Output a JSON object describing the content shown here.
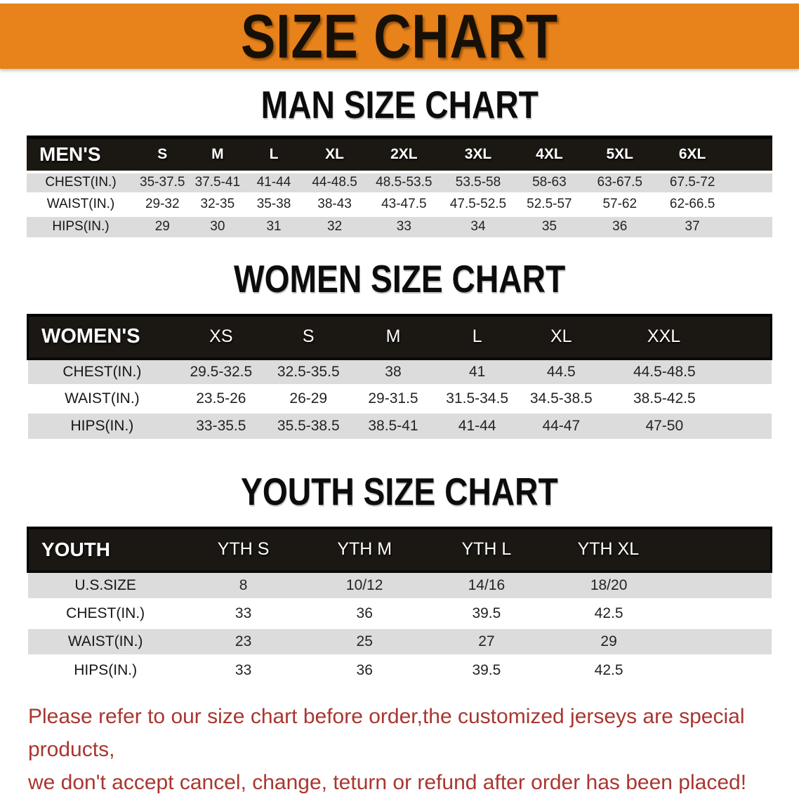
{
  "colors": {
    "banner_orange": "#e8821b",
    "table_header_black": "#1b1713",
    "row_gray": "#dcdcdc",
    "disclaimer_red": "#a93630"
  },
  "banner": {
    "title": "SIZE CHART"
  },
  "sections": {
    "men": {
      "heading": "MAN SIZE CHART",
      "table": {
        "label": "MEN'S",
        "columns": [
          "S",
          "M",
          "L",
          "XL",
          "2XL",
          "3XL",
          "4XL",
          "5XL",
          "6XL"
        ],
        "rows": [
          {
            "label": "CHEST(IN.)",
            "values": [
              "35-37.5",
              "37.5-41",
              "41-44",
              "44-48.5",
              "48.5-53.5",
              "53.5-58",
              "58-63",
              "63-67.5",
              "67.5-72"
            ]
          },
          {
            "label": "WAIST(IN.)",
            "values": [
              "29-32",
              "32-35",
              "35-38",
              "38-43",
              "43-47.5",
              "47.5-52.5",
              "52.5-57",
              "57-62",
              "62-66.5"
            ]
          },
          {
            "label": "HIPS(IN.)",
            "values": [
              "29",
              "30",
              "31",
              "32",
              "33",
              "34",
              "35",
              "36",
              "37"
            ]
          }
        ]
      }
    },
    "women": {
      "heading": "WOMEN SIZE CHART",
      "table": {
        "label": "WOMEN'S",
        "columns": [
          "XS",
          "S",
          "M",
          "L",
          "XL",
          "XXL"
        ],
        "rows": [
          {
            "label": "CHEST(IN.)",
            "values": [
              "29.5-32.5",
              "32.5-35.5",
              "38",
              "41",
              "44.5",
              "44.5-48.5"
            ]
          },
          {
            "label": "WAIST(IN.)",
            "values": [
              "23.5-26",
              "26-29",
              "29-31.5",
              "31.5-34.5",
              "34.5-38.5",
              "38.5-42.5"
            ]
          },
          {
            "label": "HIPS(IN.)",
            "values": [
              "33-35.5",
              "35.5-38.5",
              "38.5-41",
              "41-44",
              "44-47",
              "47-50"
            ]
          }
        ]
      }
    },
    "youth": {
      "heading": "YOUTH SIZE CHART",
      "table": {
        "label": "YOUTH",
        "columns": [
          "YTH S",
          "YTH M",
          "YTH L",
          "YTH XL"
        ],
        "rows": [
          {
            "label": "U.S.SIZE",
            "values": [
              "8",
              "10/12",
              "14/16",
              "18/20"
            ]
          },
          {
            "label": "CHEST(IN.)",
            "values": [
              "33",
              "36",
              "39.5",
              "42.5"
            ]
          },
          {
            "label": "WAIST(IN.)",
            "values": [
              "23",
              "25",
              "27",
              "29"
            ]
          },
          {
            "label": "HIPS(IN.)",
            "values": [
              "33",
              "36",
              "39.5",
              "42.5"
            ]
          }
        ]
      }
    }
  },
  "disclaimer": {
    "line1": "Please refer to our size chart before order,the customized jerseys are special products,",
    "line2": "we don't accept cancel, change, teturn or refund after order has been placed!"
  }
}
